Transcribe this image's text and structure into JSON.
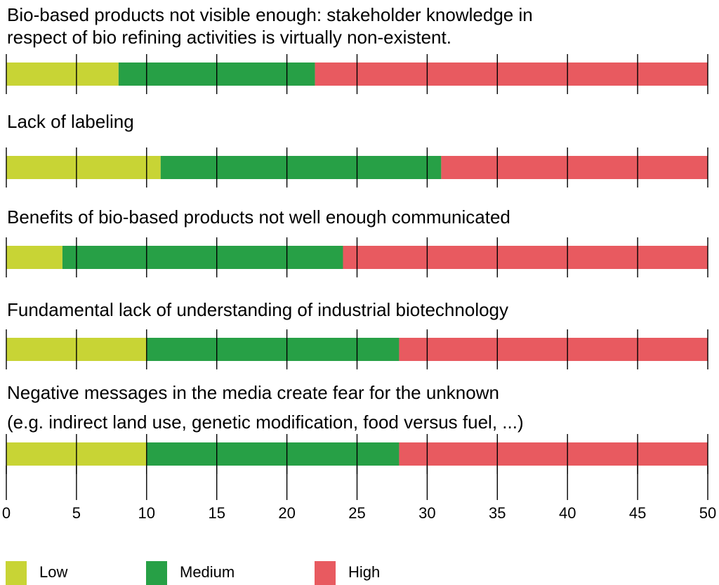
{
  "chart_data": {
    "type": "bar",
    "orientation": "horizontal",
    "stacked": true,
    "xlim": [
      0,
      50
    ],
    "xticks": [
      0,
      5,
      10,
      15,
      20,
      25,
      30,
      35,
      40,
      45,
      50
    ],
    "grid": true,
    "legend_position": "bottom",
    "categories": [
      "Bio-based products not visible enough: stakeholder knowledge in respect of bio refining activities is virtually non-existent.",
      "Lack of labeling",
      "Benefits of bio-based products not well enough communicated",
      "Fundamental lack of understanding of industrial biotechnology",
      "Negative messages in the media create fear for the unknown (e.g. indirect land use, genetic modification, food versus fuel, ...)"
    ],
    "category_lines": [
      [
        "Bio-based products not visible enough: stakeholder knowledge in",
        "respect of bio refining activities is virtually non-existent."
      ],
      [
        "Lack of labeling"
      ],
      [
        "Benefits of bio-based products not well enough communicated"
      ],
      [
        "Fundamental lack of understanding of industrial biotechnology"
      ],
      [
        "Negative messages in the media create fear for the unknown",
        "(e.g. indirect land use, genetic modification, food versus fuel, ...)"
      ]
    ],
    "series": [
      {
        "name": "Low",
        "color": "#c8d435",
        "values": [
          8,
          11,
          4,
          10,
          10
        ]
      },
      {
        "name": "Medium",
        "color": "#27a046",
        "values": [
          14,
          20,
          20,
          18,
          18
        ]
      },
      {
        "name": "High",
        "color": "#e85a60",
        "values": [
          28,
          19,
          26,
          22,
          22
        ]
      }
    ]
  }
}
